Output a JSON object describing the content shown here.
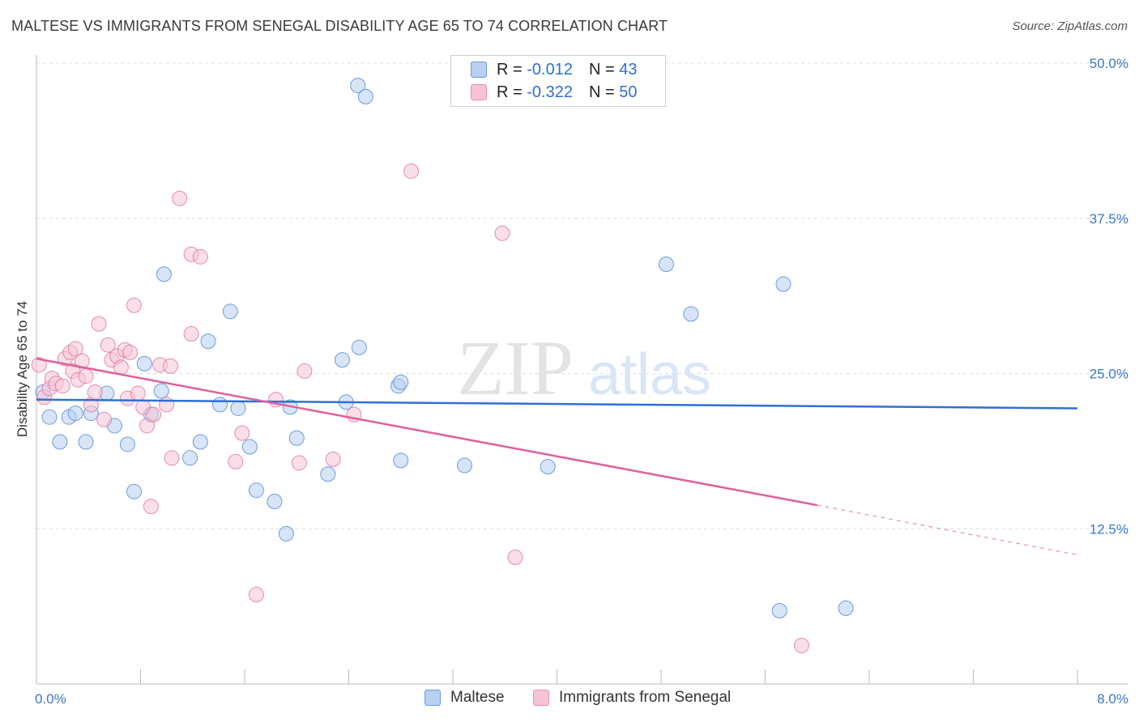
{
  "header": {
    "title": "MALTESE VS IMMIGRANTS FROM SENEGAL DISABILITY AGE 65 TO 74 CORRELATION CHART",
    "source": "Source: ZipAtlas.com"
  },
  "watermark": {
    "zip": "ZIP",
    "atlas": "atlas"
  },
  "colors": {
    "maltese": "#4a86d8",
    "maltese_fill": "#b8d0f2",
    "senegal": "#e0709a",
    "senegal_fill": "#f6c4d5",
    "axis_label": "#3b78c8",
    "grid": "#dcdcdc"
  },
  "legend": {
    "rows": [
      {
        "r_label": "R = ",
        "r_value": "-0.012",
        "n_label": "N = ",
        "n_value": "43"
      },
      {
        "r_label": "R = ",
        "r_value": "-0.322",
        "n_label": "N = ",
        "n_value": "50"
      }
    ]
  },
  "chart_data": {
    "type": "scatter",
    "title": "MALTESE VS IMMIGRANTS FROM SENEGAL DISABILITY AGE 65 TO 74 CORRELATION CHART",
    "xlabel": "",
    "ylabel": "Disability Age 65 to 74",
    "xlim": [
      0,
      8
    ],
    "ylim": [
      0,
      50
    ],
    "x_tick_labels": [
      "0.0%",
      "8.0%"
    ],
    "y_ticks": [
      12.5,
      25.0,
      37.5,
      50.0
    ],
    "y_tick_labels": [
      "12.5%",
      "25.0%",
      "37.5%",
      "50.0%"
    ],
    "grid": true,
    "legend_position": "top-center",
    "series": [
      {
        "name": "Maltese",
        "points": [
          [
            0.05,
            23.5
          ],
          [
            0.1,
            21.5
          ],
          [
            0.18,
            19.5
          ],
          [
            0.25,
            21.5
          ],
          [
            0.3,
            21.8
          ],
          [
            0.38,
            19.5
          ],
          [
            0.42,
            21.8
          ],
          [
            0.54,
            23.4
          ],
          [
            0.6,
            20.8
          ],
          [
            0.7,
            19.3
          ],
          [
            0.75,
            15.5
          ],
          [
            0.83,
            25.8
          ],
          [
            0.88,
            21.7
          ],
          [
            0.96,
            23.6
          ],
          [
            0.98,
            33.0
          ],
          [
            1.18,
            18.2
          ],
          [
            1.26,
            19.5
          ],
          [
            1.32,
            27.6
          ],
          [
            1.41,
            22.5
          ],
          [
            1.49,
            30.0
          ],
          [
            1.55,
            22.2
          ],
          [
            1.64,
            19.1
          ],
          [
            1.69,
            15.6
          ],
          [
            1.83,
            14.7
          ],
          [
            1.92,
            12.1
          ],
          [
            1.95,
            22.3
          ],
          [
            2.0,
            19.8
          ],
          [
            2.24,
            16.9
          ],
          [
            2.35,
            26.1
          ],
          [
            2.38,
            22.7
          ],
          [
            2.48,
            27.1
          ],
          [
            2.47,
            48.2
          ],
          [
            2.53,
            47.3
          ],
          [
            2.78,
            24.0
          ],
          [
            2.8,
            24.3
          ],
          [
            2.8,
            18.0
          ],
          [
            3.29,
            17.6
          ],
          [
            3.93,
            17.5
          ],
          [
            4.84,
            33.8
          ],
          [
            5.03,
            29.8
          ],
          [
            5.74,
            32.2
          ],
          [
            5.71,
            5.9
          ],
          [
            6.22,
            6.1
          ]
        ],
        "trend": {
          "x": [
            0.0,
            8.0
          ],
          "y": [
            22.9,
            22.2
          ]
        }
      },
      {
        "name": "Immigrants from Senegal",
        "points": [
          [
            0.02,
            25.7
          ],
          [
            0.06,
            23.1
          ],
          [
            0.1,
            23.8
          ],
          [
            0.12,
            24.6
          ],
          [
            0.15,
            24.2
          ],
          [
            0.2,
            24.0
          ],
          [
            0.22,
            26.2
          ],
          [
            0.26,
            26.7
          ],
          [
            0.28,
            25.2
          ],
          [
            0.3,
            27.0
          ],
          [
            0.32,
            24.5
          ],
          [
            0.35,
            26.0
          ],
          [
            0.38,
            24.8
          ],
          [
            0.42,
            22.5
          ],
          [
            0.45,
            23.5
          ],
          [
            0.48,
            29.0
          ],
          [
            0.52,
            21.3
          ],
          [
            0.55,
            27.3
          ],
          [
            0.58,
            26.1
          ],
          [
            0.62,
            26.4
          ],
          [
            0.65,
            25.5
          ],
          [
            0.68,
            26.9
          ],
          [
            0.7,
            23.0
          ],
          [
            0.72,
            26.7
          ],
          [
            0.75,
            30.5
          ],
          [
            0.78,
            23.4
          ],
          [
            0.82,
            22.3
          ],
          [
            0.85,
            20.8
          ],
          [
            0.88,
            14.3
          ],
          [
            0.9,
            21.7
          ],
          [
            0.95,
            25.7
          ],
          [
            1.0,
            22.5
          ],
          [
            1.03,
            25.6
          ],
          [
            1.04,
            18.2
          ],
          [
            1.1,
            39.1
          ],
          [
            1.19,
            28.2
          ],
          [
            1.19,
            34.6
          ],
          [
            1.26,
            34.4
          ],
          [
            1.53,
            17.9
          ],
          [
            1.58,
            20.2
          ],
          [
            1.69,
            7.2
          ],
          [
            1.84,
            22.9
          ],
          [
            2.02,
            17.8
          ],
          [
            2.06,
            25.2
          ],
          [
            2.28,
            18.1
          ],
          [
            2.44,
            21.7
          ],
          [
            2.88,
            41.3
          ],
          [
            3.58,
            36.3
          ],
          [
            3.68,
            10.2
          ],
          [
            5.88,
            3.1
          ]
        ],
        "trend": {
          "x": [
            0.0,
            6.0
          ],
          "y": [
            26.2,
            14.4
          ]
        },
        "trend_extension": {
          "x": [
            6.0,
            8.0
          ],
          "y": [
            14.4,
            10.4
          ]
        }
      }
    ]
  }
}
